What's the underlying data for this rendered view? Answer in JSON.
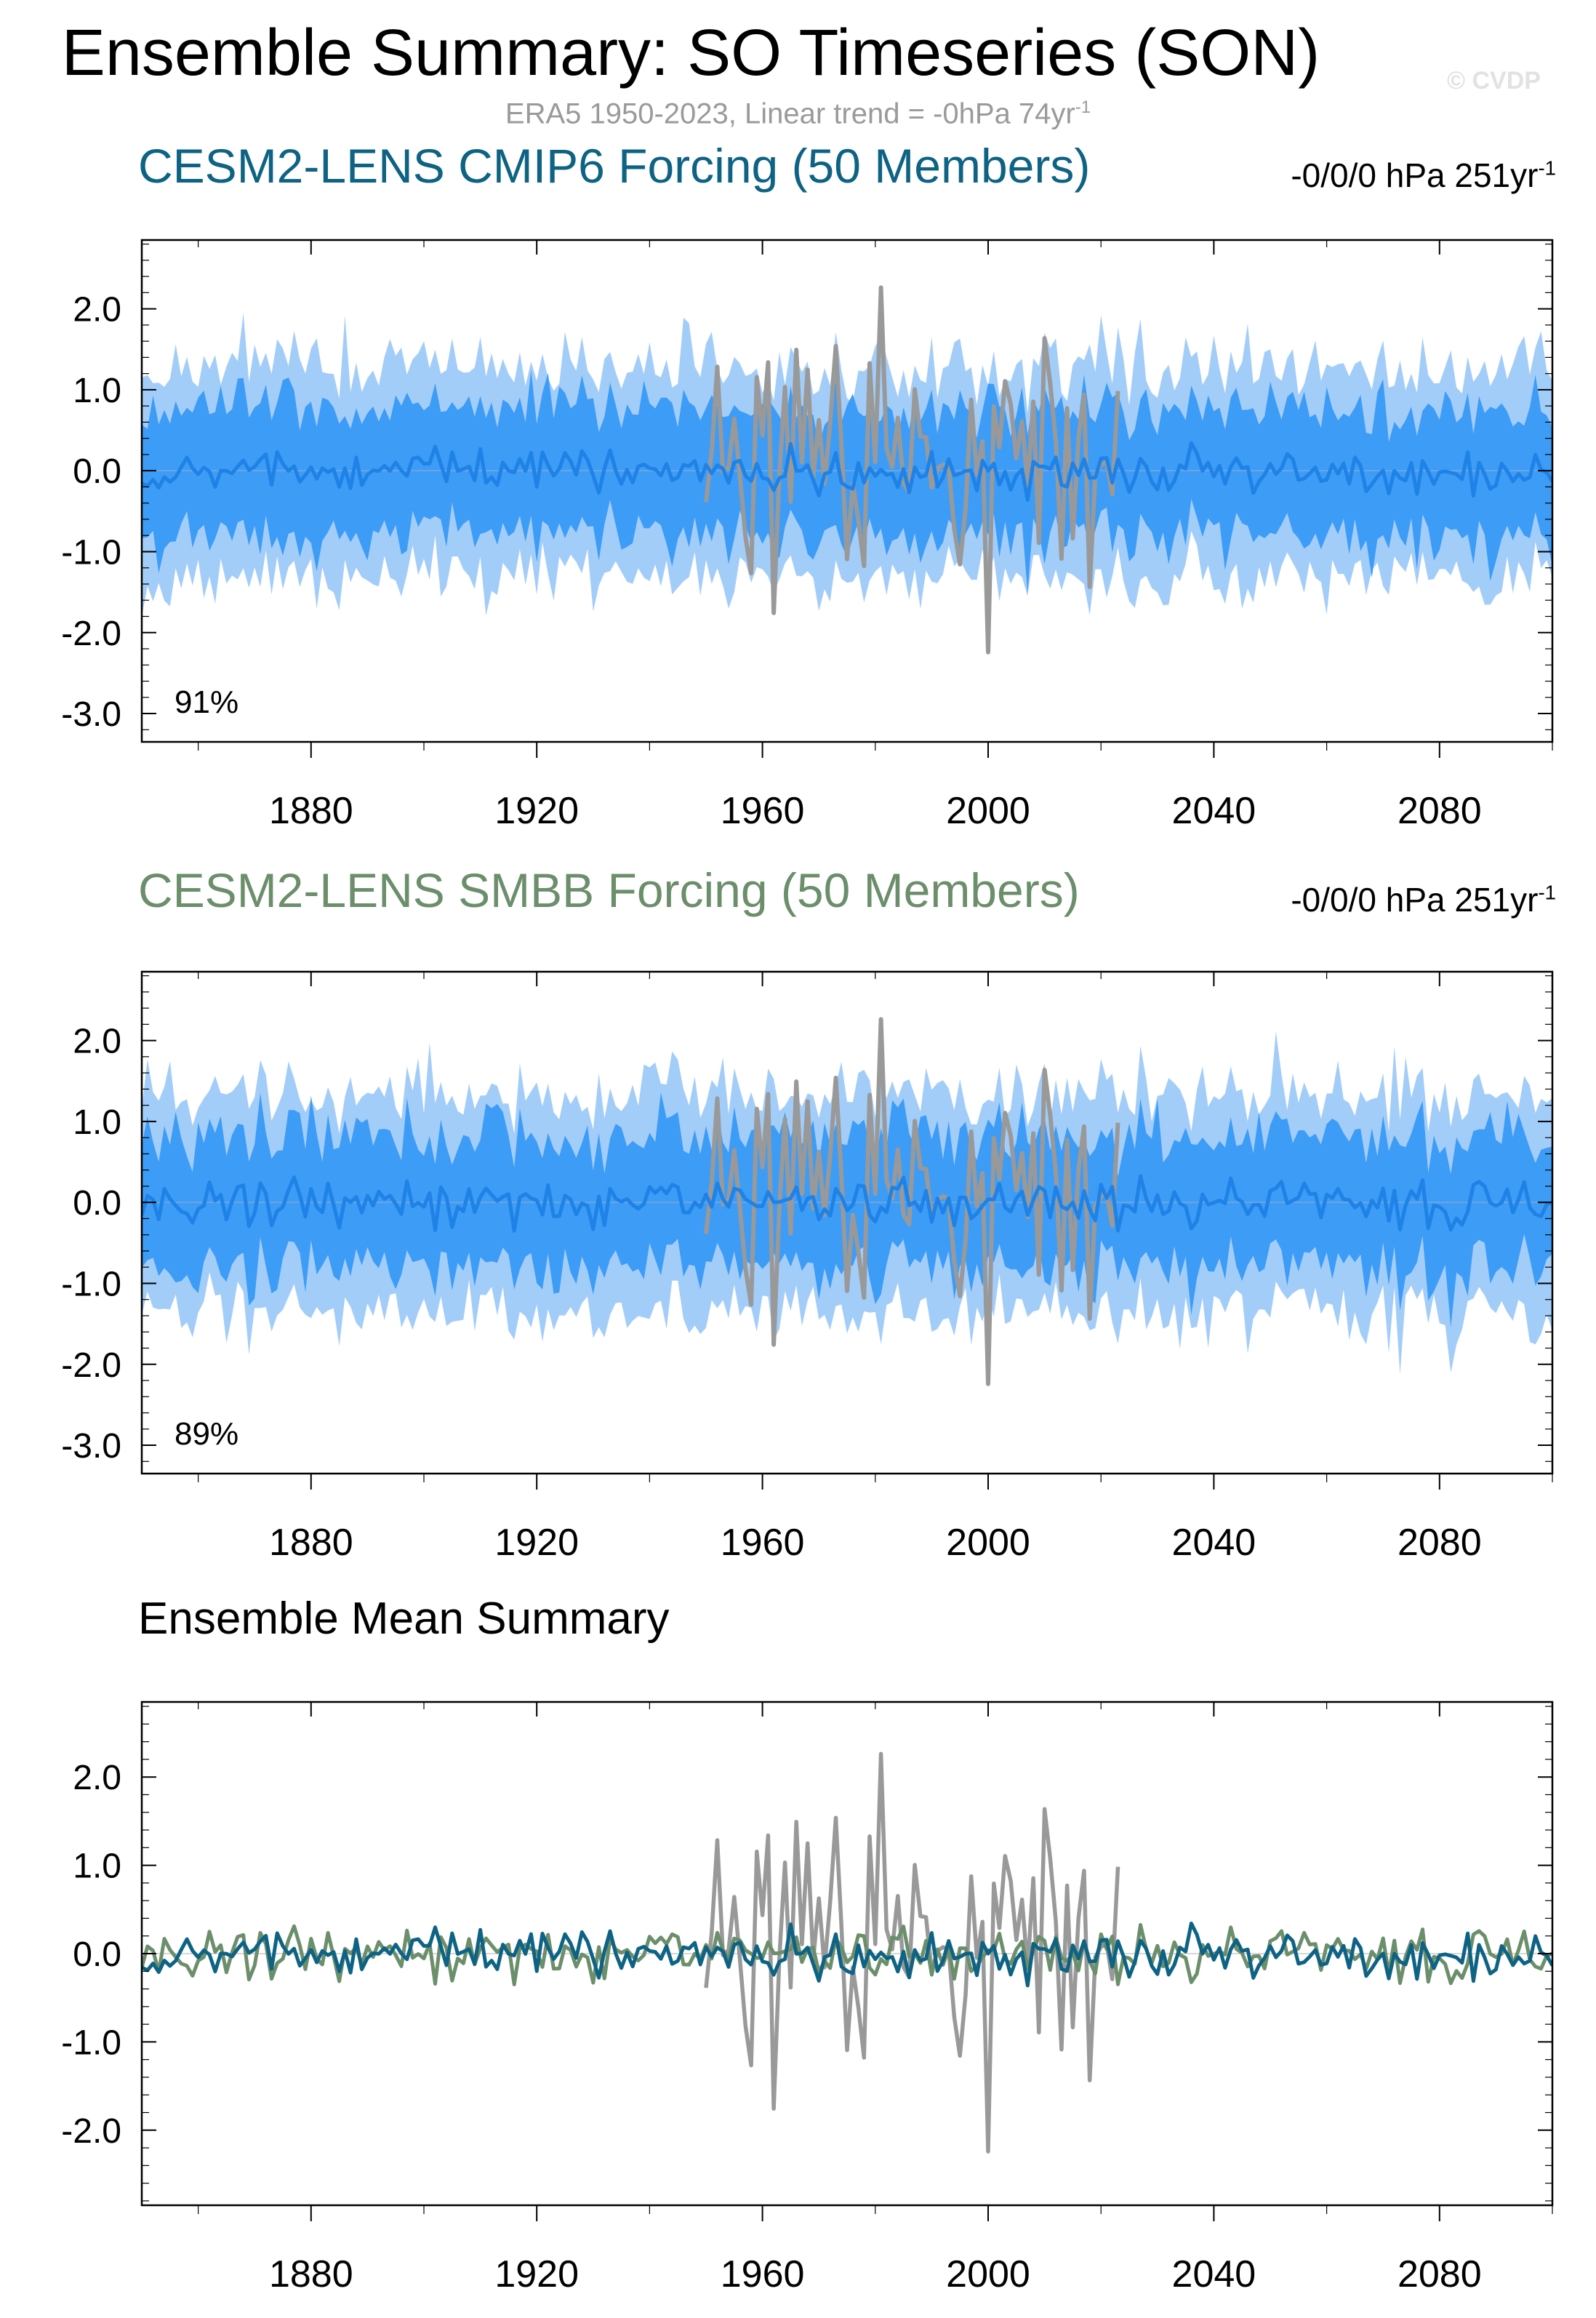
{
  "title": "Ensemble Summary: SO Timeseries (SON)",
  "watermark": "© CVDP",
  "subtitle_main": "ERA5 1950-2023, Linear trend = -0hPa 74yr",
  "subtitle_sup": "-1",
  "colors": {
    "band_outer": "#a3cdf9",
    "band_inner": "#3d9cf6",
    "mean_blue": "#1e82e6",
    "obs": "#999999",
    "cmip6": "#0e6384",
    "smbb": "#6b8e6b"
  },
  "chart_data": [
    {
      "type": "area",
      "title": "CESM2-LENS CMIP6 Forcing (50 Members)",
      "trend_main": "-0/0/0 hPa 251yr",
      "trend_sup": "-1",
      "annotation": "91%",
      "x_range": [
        1850,
        2100
      ],
      "ylim": [
        -3.35,
        2.85
      ],
      "x_ticks": [
        1880,
        1920,
        1960,
        2000,
        2040,
        2080
      ],
      "y_ticks": [
        2.0,
        1.0,
        0.0,
        -1.0,
        -2.0,
        -3.0
      ],
      "y_tick_labels": [
        "2.0",
        "1.0",
        "0.0",
        "-1.0",
        "-2.0",
        "-3.0"
      ],
      "series": [
        {
          "role": "ensemble 10-90% range",
          "x_start": 1850,
          "x_end": 2100,
          "half_width": 1.05
        },
        {
          "role": "ensemble 25-75% range",
          "x_start": 1850,
          "x_end": 2100,
          "half_width": 0.6
        },
        {
          "role": "ensemble mean",
          "x_start": 1850,
          "x_end": 2100,
          "amplitude": 0.2
        },
        {
          "role": "observations",
          "x_start": 1950,
          "x_end": 2023,
          "amplitude": 1.3
        }
      ]
    },
    {
      "type": "area",
      "title": "CESM2-LENS SMBB Forcing (50 Members)",
      "trend_main": "-0/0/0 hPa 251yr",
      "trend_sup": "-1",
      "annotation": "89%",
      "x_range": [
        1850,
        2100
      ],
      "ylim": [
        -3.35,
        2.85
      ],
      "x_ticks": [
        1880,
        1920,
        1960,
        2000,
        2040,
        2080
      ],
      "y_ticks": [
        2.0,
        1.0,
        0.0,
        -1.0,
        -2.0,
        -3.0
      ],
      "y_tick_labels": [
        "2.0",
        "1.0",
        "0.0",
        "-1.0",
        "-2.0",
        "-3.0"
      ],
      "series": [
        {
          "role": "ensemble 10-90% range",
          "x_start": 1850,
          "x_end": 2100,
          "half_width": 1.1
        },
        {
          "role": "ensemble 25-75% range",
          "x_start": 1850,
          "x_end": 2100,
          "half_width": 0.62
        },
        {
          "role": "ensemble mean",
          "x_start": 1850,
          "x_end": 2100,
          "amplitude": 0.22
        },
        {
          "role": "observations",
          "x_start": 1950,
          "x_end": 2023,
          "amplitude": 1.3
        }
      ]
    },
    {
      "type": "line",
      "title": "Ensemble Mean Summary",
      "x_range": [
        1850,
        2100
      ],
      "ylim": [
        -2.85,
        2.85
      ],
      "x_ticks": [
        1880,
        1920,
        1960,
        2000,
        2040,
        2080
      ],
      "y_ticks": [
        2.0,
        1.0,
        0.0,
        -1.0,
        -2.0
      ],
      "y_tick_labels": [
        "2.0",
        "1.0",
        "0.0",
        "-1.0",
        "-2.0"
      ],
      "series": [
        {
          "role": "CMIP6 ensemble mean",
          "x_start": 1850,
          "x_end": 2100,
          "amplitude": 0.2
        },
        {
          "role": "SMBB ensemble mean",
          "x_start": 1850,
          "x_end": 2100,
          "amplitude": 0.22
        },
        {
          "role": "observations",
          "x_start": 1950,
          "x_end": 2023,
          "amplitude": 1.3
        }
      ]
    }
  ]
}
